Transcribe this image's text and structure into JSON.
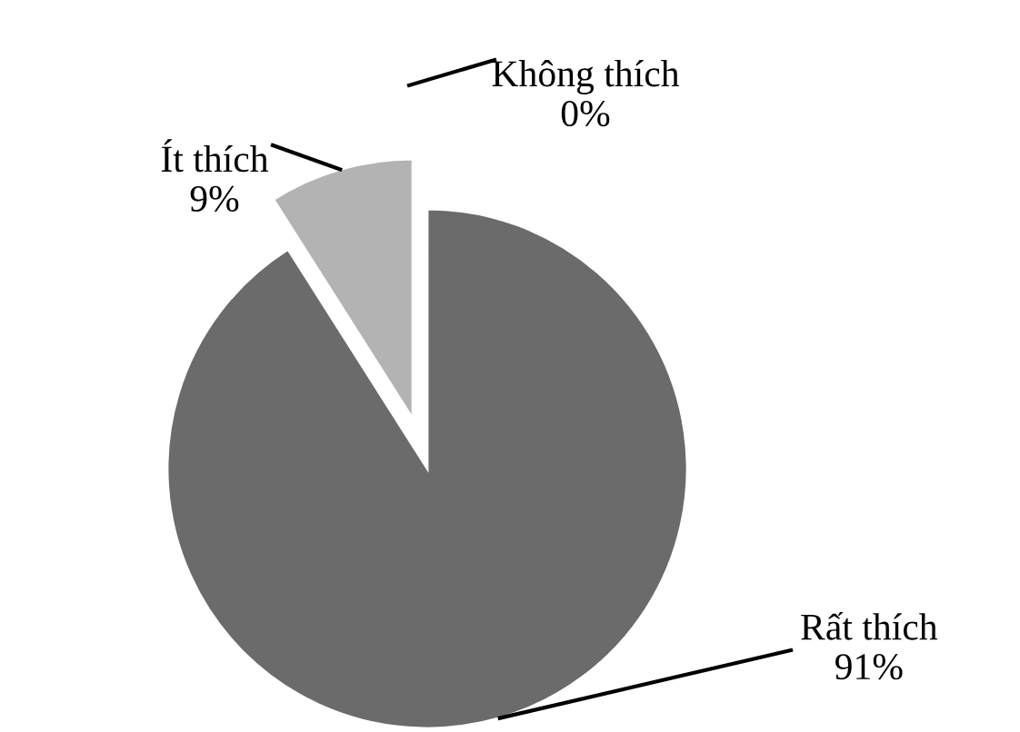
{
  "chart_data": {
    "type": "pie",
    "categories": [
      "Rất thích",
      "Ít thích",
      "Không thích"
    ],
    "values": [
      91,
      9,
      0
    ],
    "colors": [
      "#6b6b6b",
      "#b3b3b3",
      "#d9d9d9"
    ],
    "value_labels": [
      "91%",
      "9%",
      "0%"
    ]
  }
}
